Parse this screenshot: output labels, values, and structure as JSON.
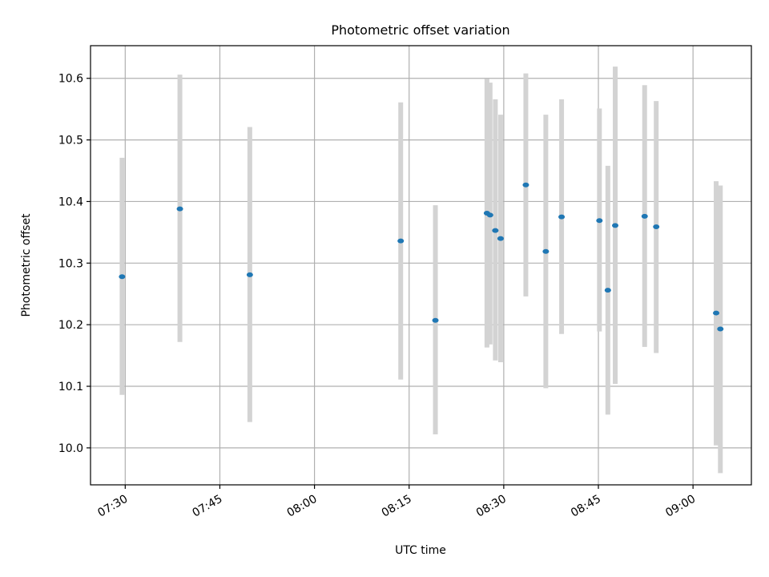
{
  "chart_data": {
    "type": "scatter",
    "title": "Photometric offset variation",
    "xlabel": "UTC time",
    "ylabel": "Photometric offset",
    "x_ticks": [
      "07:30",
      "07:45",
      "08:00",
      "08:15",
      "08:30",
      "08:45",
      "09:00"
    ],
    "y_ticks": [
      "10.0",
      "10.1",
      "10.2",
      "10.3",
      "10.4",
      "10.5",
      "10.6"
    ],
    "xlim": [
      "07:24:30",
      "09:09:15"
    ],
    "ylim": [
      9.94,
      10.653
    ],
    "grid": true,
    "colors": {
      "point": "#1f77b4",
      "errorbar": "#d3d3d3"
    },
    "series": [
      {
        "x": [
          "07:29:30",
          "07:38:40",
          "07:49:45",
          "08:13:40",
          "08:19:10",
          "08:27:20",
          "08:27:50",
          "08:28:40",
          "08:29:30",
          "08:33:30",
          "08:36:40",
          "08:39:10",
          "08:45:10",
          "08:46:30",
          "08:47:40",
          "08:52:20",
          "08:54:10",
          "09:03:40",
          "09:04:20"
        ],
        "y": [
          10.278,
          10.388,
          10.281,
          10.336,
          10.207,
          10.381,
          10.378,
          10.353,
          10.34,
          10.427,
          10.319,
          10.375,
          10.369,
          10.256,
          10.361,
          10.376,
          10.359,
          10.219,
          10.193
        ],
        "yerr_low": [
          10.086,
          10.172,
          10.042,
          10.111,
          10.022,
          10.163,
          10.168,
          10.142,
          10.139,
          10.246,
          10.097,
          10.185,
          10.189,
          10.054,
          10.104,
          10.164,
          10.154,
          10.004,
          9.959
        ],
        "yerr_high": [
          10.471,
          10.606,
          10.521,
          10.561,
          10.394,
          10.599,
          10.593,
          10.566,
          10.541,
          10.608,
          10.541,
          10.566,
          10.551,
          10.458,
          10.619,
          10.589,
          10.563,
          10.433,
          10.426
        ]
      }
    ]
  }
}
